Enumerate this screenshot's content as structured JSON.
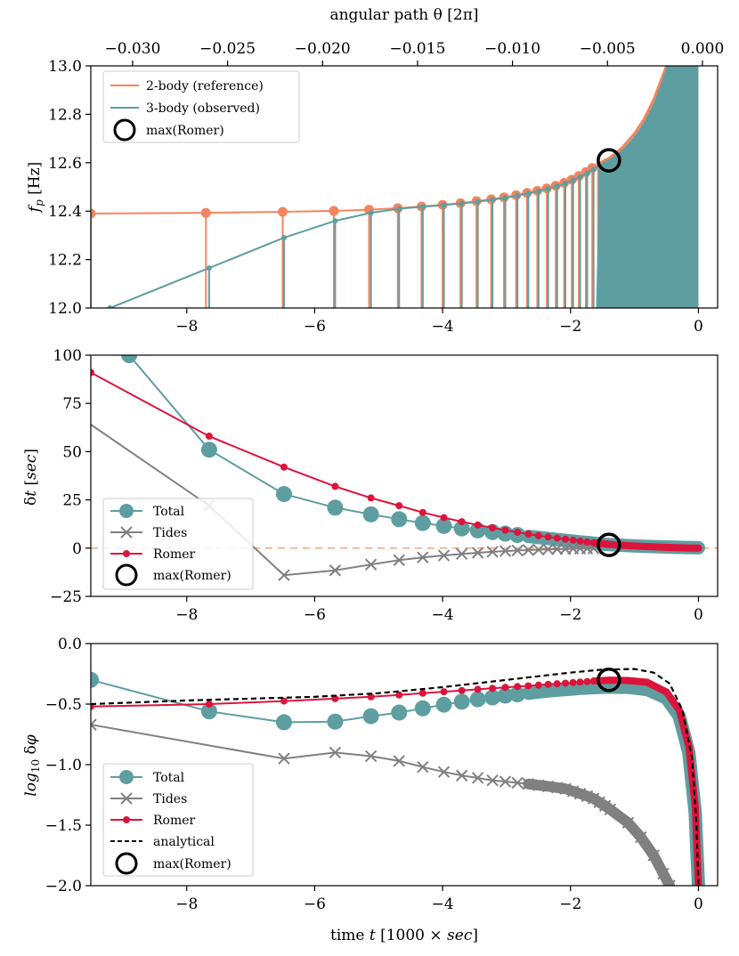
{
  "chart_data": [
    {
      "type": "line",
      "title": "",
      "top_axis_label": "angular path θ [2π]",
      "top_ticks": [
        "−0.030",
        "−0.025",
        "−0.020",
        "−0.015",
        "−0.010",
        "−0.005",
        "0.000"
      ],
      "top_tick_values": [
        -0.03,
        -0.025,
        -0.02,
        -0.015,
        -0.01,
        -0.005,
        0.0
      ],
      "ylabel": "f_p [Hz]",
      "xlim": [
        -9.5,
        0.3
      ],
      "ylim": [
        12.0,
        13.0
      ],
      "yticks": [
        12.0,
        12.2,
        12.4,
        12.6,
        12.8,
        13.0
      ],
      "ytick_labels": [
        "12.0",
        "12.2",
        "12.4",
        "12.6",
        "12.8",
        "13.0"
      ],
      "xticks": [
        -8,
        -6,
        -4,
        -2,
        0
      ],
      "xtick_labels": [
        "−8",
        "−6",
        "−4",
        "−2",
        "0"
      ],
      "legend": {
        "position": "upper-left",
        "entries": [
          "2-body (reference)",
          "3-body (observed)",
          "max(Romer)"
        ]
      },
      "series": [
        {
          "name": "2-body (reference)",
          "color": "#f4845f",
          "x": [
            -9.5,
            -7.7,
            -6.5,
            -5.7,
            -5.15,
            -4.7,
            -4.33,
            -4.0,
            -3.72,
            -3.47,
            -3.24,
            -3.04,
            -2.85,
            -2.68,
            -2.52,
            -2.37,
            -2.23,
            -2.1,
            -1.98,
            -1.87,
            -1.76,
            -1.66,
            -1.57,
            -1.48,
            -1.4,
            -1.2,
            -1.0,
            -0.85,
            -0.7,
            -0.6,
            -0.5
          ],
          "values": [
            12.39,
            12.393,
            12.397,
            12.401,
            12.406,
            12.412,
            12.419,
            12.426,
            12.433,
            12.441,
            12.449,
            12.457,
            12.466,
            12.475,
            12.484,
            12.494,
            12.505,
            12.517,
            12.53,
            12.545,
            12.561,
            12.578,
            12.594,
            12.608,
            12.618,
            12.66,
            12.72,
            12.78,
            12.86,
            12.93,
            13.0
          ]
        },
        {
          "name": "3-body (observed)",
          "color": "#5f9ea0",
          "x": [
            -9.2,
            -7.65,
            -6.48,
            -5.68,
            -5.12,
            -4.68,
            -4.31,
            -3.98,
            -3.7,
            -3.45,
            -3.22,
            -3.02,
            -2.83,
            -2.66,
            -2.5,
            -2.35,
            -2.21,
            -2.08,
            -1.96,
            -1.85,
            -1.74,
            -1.64,
            -1.55,
            -1.46,
            -1.38,
            -1.18,
            -0.98,
            -0.83,
            -0.68,
            -0.58,
            -0.48
          ],
          "values": [
            12.0,
            12.165,
            12.29,
            12.36,
            12.393,
            12.41,
            12.418,
            12.425,
            12.432,
            12.439,
            12.447,
            12.455,
            12.464,
            12.473,
            12.482,
            12.492,
            12.503,
            12.515,
            12.528,
            12.542,
            12.557,
            12.573,
            12.589,
            12.602,
            12.612,
            12.652,
            12.71,
            12.77,
            12.85,
            12.92,
            13.0
          ]
        },
        {
          "name": "max(Romer)",
          "type": "marker",
          "x": [
            -1.4
          ],
          "values": [
            12.61
          ]
        }
      ]
    },
    {
      "type": "line",
      "ylabel": "δt [sec]",
      "xlim": [
        -9.5,
        0.3
      ],
      "ylim": [
        -25,
        100
      ],
      "yticks": [
        -25,
        0,
        25,
        50,
        75,
        100
      ],
      "ytick_labels": [
        "−25",
        "0",
        "25",
        "50",
        "75",
        "100"
      ],
      "xticks": [
        -8,
        -6,
        -4,
        -2,
        0
      ],
      "xtick_labels": [
        "−8",
        "−6",
        "−4",
        "−2",
        "0"
      ],
      "reference_line": {
        "y": 0,
        "style": "dashed",
        "color": "#f4a582"
      },
      "legend": {
        "position": "lower-left",
        "entries": [
          "Total",
          "Tides",
          "Romer",
          "max(Romer)"
        ]
      },
      "series": [
        {
          "name": "Total",
          "color": "#5f9ea0",
          "x": [
            -8.9,
            -7.65,
            -6.48,
            -5.68,
            -5.12,
            -4.68,
            -4.31,
            -3.98,
            -3.7,
            -3.45,
            -3.22,
            -3.02,
            -2.83,
            -2.66,
            -2.5,
            -2.35,
            -2.21,
            -2.08,
            -1.96,
            -1.85,
            -1.74,
            -1.64,
            -1.55,
            -1.46,
            -1.38,
            -1.1,
            -0.8,
            -0.5,
            -0.2,
            0.0
          ],
          "values": [
            100,
            51,
            28,
            21,
            17.5,
            15,
            13,
            11.5,
            10.2,
            9.2,
            8.3,
            7.5,
            6.8,
            6.1,
            5.5,
            5.0,
            4.5,
            4.0,
            3.6,
            3.2,
            2.9,
            2.6,
            2.3,
            2.0,
            1.8,
            1.3,
            0.9,
            0.6,
            0.3,
            0.2
          ]
        },
        {
          "name": "Tides",
          "color": "#808080",
          "x": [
            -9.5,
            -7.65,
            -6.48,
            -5.68,
            -5.12,
            -4.68,
            -4.31,
            -3.98,
            -3.7,
            -3.45,
            -3.22,
            -3.02,
            -2.83,
            -2.66,
            -2.5,
            -2.35,
            -2.21,
            -2.08,
            -1.96,
            -1.85,
            -1.74,
            -1.64
          ],
          "values": [
            64,
            22,
            -14,
            -11.5,
            -8.5,
            -6.2,
            -4.8,
            -3.8,
            -3.0,
            -2.4,
            -1.9,
            -1.5,
            -1.2,
            -1.0,
            -0.8,
            -0.6,
            -0.5,
            -0.4,
            -0.3,
            -0.25,
            -0.2,
            -0.15
          ]
        },
        {
          "name": "Romer",
          "color": "#dc143c",
          "x": [
            -9.5,
            -7.65,
            -6.48,
            -5.68,
            -5.12,
            -4.68,
            -4.31,
            -3.98,
            -3.7,
            -3.45,
            -3.22,
            -3.02,
            -2.83,
            -2.66,
            -2.5,
            -2.35,
            -2.21,
            -2.08,
            -1.96,
            -1.85,
            -1.74,
            -1.64,
            -1.55,
            -1.46,
            -1.38,
            -1.1,
            -0.8,
            -0.5,
            -0.2,
            0.0
          ],
          "values": [
            91,
            58,
            42,
            32,
            26,
            22,
            18.5,
            15.8,
            13.7,
            12.0,
            10.5,
            9.3,
            8.2,
            7.3,
            6.5,
            5.8,
            5.2,
            4.6,
            4.1,
            3.6,
            3.2,
            2.8,
            2.5,
            2.2,
            1.9,
            1.3,
            0.8,
            0.4,
            0.1,
            0.0
          ]
        },
        {
          "name": "max(Romer)",
          "type": "marker",
          "x": [
            -1.4
          ],
          "values": [
            1.7
          ]
        }
      ]
    },
    {
      "type": "line",
      "xlabel": "time t [1000 × sec]",
      "ylabel": "log₁₀ δφ",
      "xlim": [
        -9.5,
        0.3
      ],
      "ylim": [
        -2.0,
        0.0
      ],
      "yticks": [
        -2.0,
        -1.5,
        -1.0,
        -0.5,
        0.0
      ],
      "ytick_labels": [
        "−2.0",
        "−1.5",
        "−1.0",
        "−0.5",
        "0.0"
      ],
      "xticks": [
        -8,
        -6,
        -4,
        -2,
        0
      ],
      "xtick_labels": [
        "−8",
        "−6",
        "−4",
        "−2",
        "0"
      ],
      "legend": {
        "position": "lower-left",
        "entries": [
          "Total",
          "Tides",
          "Romer",
          "analytical",
          "max(Romer)"
        ]
      },
      "series": [
        {
          "name": "Total",
          "color": "#5f9ea0",
          "x": [
            -9.5,
            -7.65,
            -6.48,
            -5.68,
            -5.12,
            -4.68,
            -4.31,
            -3.98,
            -3.7,
            -3.45,
            -3.22,
            -3.02,
            -2.83,
            -2.66,
            -2.5,
            -2.35,
            -2.21,
            -2.08,
            -1.96,
            -1.85,
            -1.74,
            -1.64,
            -1.55,
            -1.46,
            -1.38,
            -1.1,
            -0.8,
            -0.5,
            -0.3,
            -0.15,
            -0.05,
            0.0
          ],
          "values": [
            -0.3,
            -0.56,
            -0.65,
            -0.645,
            -0.6,
            -0.57,
            -0.535,
            -0.505,
            -0.48,
            -0.46,
            -0.445,
            -0.43,
            -0.42,
            -0.41,
            -0.4,
            -0.392,
            -0.385,
            -0.38,
            -0.375,
            -0.37,
            -0.367,
            -0.364,
            -0.362,
            -0.36,
            -0.36,
            -0.362,
            -0.38,
            -0.45,
            -0.6,
            -0.9,
            -1.4,
            -2.0
          ]
        },
        {
          "name": "Tides",
          "color": "#808080",
          "x": [
            -9.5,
            -6.48,
            -5.68,
            -5.12,
            -4.68,
            -4.31,
            -3.98,
            -3.7,
            -3.45,
            -3.22,
            -3.02,
            -2.83,
            -2.66,
            -2.5,
            -2.35,
            -2.21,
            -2.08,
            -1.96,
            -1.85,
            -1.74,
            -1.64,
            -1.55,
            -1.46,
            -1.38,
            -1.1,
            -0.9,
            -0.7,
            -0.55,
            -0.45
          ],
          "values": [
            -0.67,
            -0.95,
            -0.9,
            -0.93,
            -0.97,
            -1.02,
            -1.06,
            -1.09,
            -1.11,
            -1.13,
            -1.14,
            -1.15,
            -1.16,
            -1.17,
            -1.18,
            -1.19,
            -1.2,
            -1.22,
            -1.24,
            -1.26,
            -1.28,
            -1.31,
            -1.34,
            -1.37,
            -1.48,
            -1.6,
            -1.75,
            -1.9,
            -2.0
          ]
        },
        {
          "name": "Romer",
          "color": "#dc143c",
          "x": [
            -9.5,
            -7.65,
            -6.48,
            -5.68,
            -5.12,
            -4.68,
            -4.31,
            -3.98,
            -3.7,
            -3.45,
            -3.22,
            -3.02,
            -2.83,
            -2.66,
            -2.5,
            -2.35,
            -2.21,
            -2.08,
            -1.96,
            -1.85,
            -1.74,
            -1.64,
            -1.55,
            -1.46,
            -1.38,
            -1.1,
            -0.8,
            -0.5,
            -0.3,
            -0.15,
            -0.05,
            0.0
          ],
          "values": [
            -0.52,
            -0.5,
            -0.475,
            -0.455,
            -0.44,
            -0.425,
            -0.41,
            -0.398,
            -0.388,
            -0.378,
            -0.37,
            -0.362,
            -0.355,
            -0.349,
            -0.343,
            -0.337,
            -0.332,
            -0.327,
            -0.322,
            -0.318,
            -0.314,
            -0.31,
            -0.307,
            -0.304,
            -0.302,
            -0.305,
            -0.32,
            -0.4,
            -0.55,
            -0.85,
            -1.35,
            -2.0
          ]
        },
        {
          "name": "analytical",
          "color": "#000000",
          "style": "dashed",
          "x": [
            -9.5,
            -8,
            -6,
            -5,
            -4,
            -3,
            -2.5,
            -2,
            -1.5,
            -1.0,
            -0.7,
            -0.45,
            -0.25,
            -0.1,
            -0.03,
            0.0
          ],
          "values": [
            -0.5,
            -0.47,
            -0.44,
            -0.41,
            -0.36,
            -0.3,
            -0.27,
            -0.24,
            -0.215,
            -0.21,
            -0.24,
            -0.33,
            -0.55,
            -0.95,
            -1.5,
            -2.0
          ]
        },
        {
          "name": "max(Romer)",
          "type": "marker",
          "x": [
            -1.4
          ],
          "values": [
            -0.3
          ]
        }
      ]
    }
  ]
}
